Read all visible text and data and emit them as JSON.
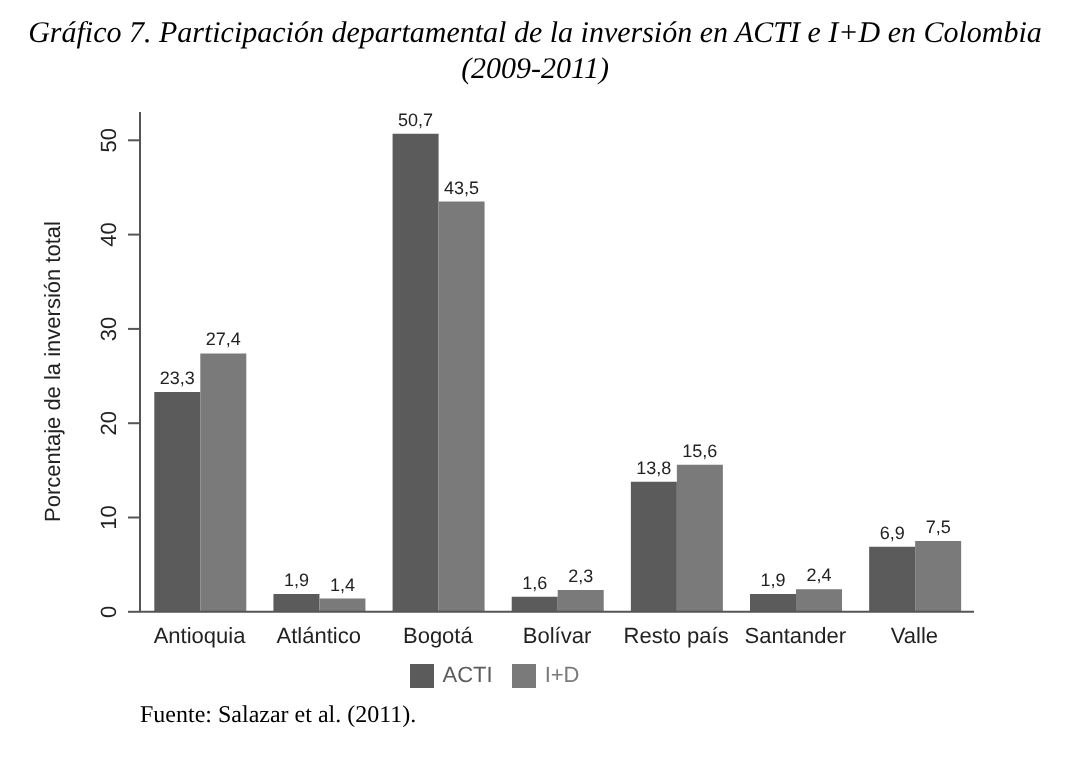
{
  "chart_data": {
    "type": "bar",
    "title": "Gráfico 7. Participación departamental de la inversión en ACTI e I+D en Colombia (2009-2011)",
    "ylabel": "Porcentaje de la inversión total",
    "categories": [
      "Antioquia",
      "Atlántico",
      "Bogotá",
      "Bolívar",
      "Resto país",
      "Santander",
      "Valle"
    ],
    "series": [
      {
        "name": "ACTI",
        "color": "#5b5b5b",
        "values": [
          23.3,
          1.9,
          50.7,
          1.6,
          13.8,
          1.9,
          6.9
        ],
        "value_labels": [
          "23,3",
          "1,9",
          "50,7",
          "1,6",
          "13,8",
          "1,9",
          "6,9"
        ]
      },
      {
        "name": "I+D",
        "color": "#7a7a7a",
        "values": [
          27.4,
          1.4,
          43.5,
          2.3,
          15.6,
          2.4,
          7.5
        ],
        "value_labels": [
          "27,4",
          "1,4",
          "43,5",
          "2,3",
          "15,6",
          "2,4",
          "7,5"
        ]
      }
    ],
    "ylim": [
      0,
      53
    ],
    "yticks": [
      0,
      10,
      20,
      30,
      40,
      50
    ],
    "grid": false,
    "legend": "bottom",
    "annotations": [
      "Fuente: Salazar et al. (2011)."
    ]
  }
}
